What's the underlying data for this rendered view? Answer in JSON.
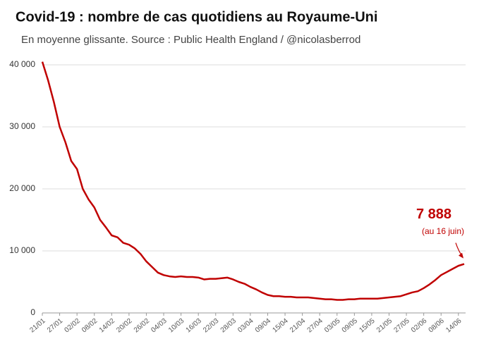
{
  "chart_data": {
    "type": "line",
    "title": "Covid-19 : nombre de cas quotidiens au Royaume-Uni",
    "subtitle": "En moyenne glissante. Source : Public Health England / @nicolasberrod",
    "categories": [
      "21/01",
      null,
      null,
      "27/01",
      null,
      null,
      "02/02",
      null,
      null,
      "08/02",
      null,
      null,
      "14/02",
      null,
      null,
      "20/02",
      null,
      null,
      "26/02",
      null,
      null,
      "04/03",
      null,
      null,
      "10/03",
      null,
      null,
      "16/03",
      null,
      null,
      "22/03",
      null,
      null,
      "28/03",
      null,
      null,
      "03/04",
      null,
      null,
      "09/04",
      null,
      null,
      "15/04",
      null,
      null,
      "21/04",
      null,
      null,
      "27/04",
      null,
      null,
      "03/05",
      null,
      null,
      "09/05",
      null,
      null,
      "15/05",
      null,
      null,
      "21/05",
      null,
      null,
      "27/05",
      null,
      null,
      "02/06",
      null,
      null,
      "08/06",
      null,
      null,
      "14/06",
      null
    ],
    "series": [
      {
        "name": "Cas quotidiens",
        "color": "#c00000",
        "values": [
          40500,
          37500,
          34000,
          30000,
          27500,
          24500,
          23200,
          20000,
          18300,
          17000,
          15000,
          13800,
          12500,
          12200,
          11300,
          11000,
          10400,
          9500,
          8300,
          7400,
          6500,
          6100,
          5900,
          5800,
          5900,
          5800,
          5800,
          5700,
          5400,
          5500,
          5500,
          5600,
          5700,
          5400,
          5000,
          4700,
          4200,
          3800,
          3300,
          2900,
          2700,
          2700,
          2600,
          2600,
          2500,
          2500,
          2500,
          2400,
          2300,
          2200,
          2200,
          2100,
          2100,
          2200,
          2200,
          2300,
          2300,
          2300,
          2300,
          2400,
          2500,
          2600,
          2700,
          3000,
          3300,
          3500,
          4000,
          4600,
          5300,
          6100,
          6600,
          7100,
          7600,
          7888
        ]
      }
    ],
    "ylim": [
      0,
      40000
    ],
    "yticks": [
      0,
      {
        "value": 10000,
        "label": "10 000"
      },
      {
        "value": 20000,
        "label": "20 000"
      },
      {
        "value": 30000,
        "label": "30 000"
      },
      {
        "value": 40000,
        "label": "40 000"
      }
    ],
    "grid": true,
    "annotation": {
      "value": 7888,
      "label": "7 888",
      "sublabel": "(au 16 juin)"
    }
  }
}
